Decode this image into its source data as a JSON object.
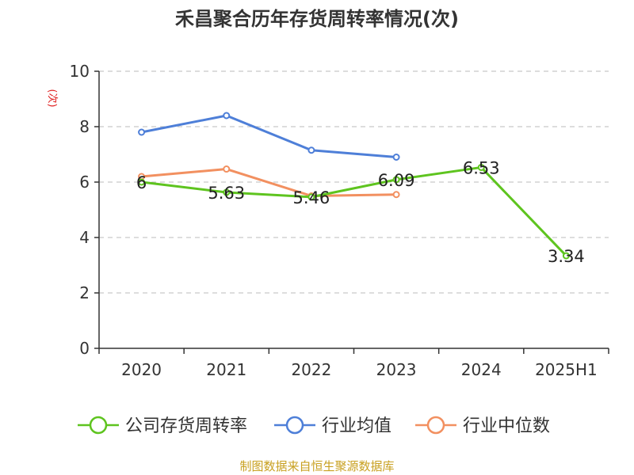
{
  "chart_data": {
    "type": "line",
    "title": "禾昌聚合历年存货周转率情况(次)",
    "ylabel": "(次)",
    "categories": [
      "2020",
      "2021",
      "2022",
      "2023",
      "2024",
      "2025H1"
    ],
    "ylim": [
      0,
      10
    ],
    "yticks": [
      0,
      2,
      4,
      6,
      8,
      10
    ],
    "grid": true,
    "legend_position": "bottom",
    "series": [
      {
        "name": "公司存货周转率",
        "color": "#5ec41f",
        "values": [
          6,
          5.63,
          5.46,
          6.09,
          6.53,
          3.34
        ],
        "labels": [
          "6",
          "5.63",
          "5.46",
          "6.09",
          "6.53",
          "3.34"
        ]
      },
      {
        "name": "行业均值",
        "color": "#4e7fd8",
        "values": [
          7.8,
          8.4,
          7.15,
          6.9,
          null,
          null
        ]
      },
      {
        "name": "行业中位数",
        "color": "#f29060",
        "values": [
          6.2,
          6.47,
          5.5,
          5.55,
          null,
          null
        ]
      }
    ],
    "source": "制图数据来自恒生聚源数据库"
  },
  "colors": {
    "axis": "#333333",
    "grid": "#bbbbbb",
    "ylabel": "#e02020",
    "source": "#c8a020"
  }
}
